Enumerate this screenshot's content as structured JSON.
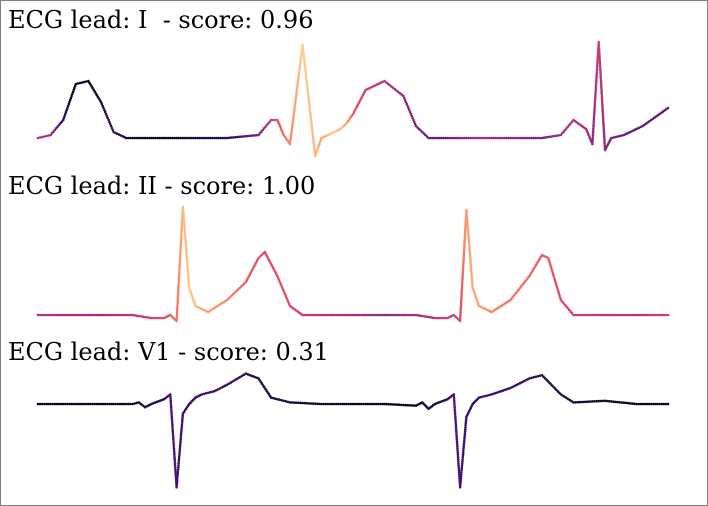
{
  "colors": {
    "colormap": [
      "#000004",
      "#1c1044",
      "#4f127b",
      "#812581",
      "#b5367a",
      "#e55064",
      "#fb8761",
      "#fec287",
      "#fcfdbf"
    ],
    "frame": "#808080",
    "background": "#ffffff"
  },
  "chart_data": [
    {
      "type": "scatter",
      "title": "ECG lead: I  - score: 0.96",
      "xlabel": "",
      "ylabel": "",
      "axes_visible": false,
      "grid": false,
      "legend": "none",
      "color_encoding": "magma colormap by attribution value (0-1)",
      "x": [
        0,
        0.02,
        0.04,
        0.06,
        0.08,
        0.1,
        0.12,
        0.14,
        0.16,
        0.2,
        0.25,
        0.3,
        0.35,
        0.37,
        0.38,
        0.39,
        0.4,
        0.42,
        0.44,
        0.45,
        0.46,
        0.47,
        0.48,
        0.49,
        0.5,
        0.52,
        0.55,
        0.58,
        0.6,
        0.62,
        0.64,
        0.66,
        0.68,
        0.7,
        0.75,
        0.8,
        0.83,
        0.85,
        0.87,
        0.88,
        0.89,
        0.9,
        0.91,
        0.93,
        0.96,
        1.0
      ],
      "y": [
        0,
        0.05,
        0.3,
        0.9,
        0.95,
        0.6,
        0.1,
        0.0,
        0.0,
        0.0,
        0.0,
        0.0,
        0.05,
        0.3,
        0.3,
        0.05,
        -0.1,
        1.55,
        -0.3,
        0.0,
        0.05,
        0.1,
        0.15,
        0.25,
        0.4,
        0.8,
        0.95,
        0.7,
        0.2,
        0.0,
        0.0,
        0.0,
        0.0,
        0.0,
        0.0,
        0.0,
        0.05,
        0.3,
        0.15,
        -0.1,
        1.6,
        -0.2,
        0.0,
        0.05,
        0.2,
        0.5
      ],
      "attribution": [
        0.5,
        0.45,
        0.15,
        0.05,
        0.05,
        0.1,
        0.2,
        0.1,
        0.05,
        0.05,
        0.1,
        0.15,
        0.35,
        0.55,
        0.6,
        0.7,
        0.75,
        0.9,
        0.85,
        0.8,
        0.85,
        0.9,
        0.85,
        0.8,
        0.65,
        0.55,
        0.5,
        0.4,
        0.35,
        0.3,
        0.3,
        0.35,
        0.4,
        0.45,
        0.4,
        0.35,
        0.45,
        0.5,
        0.45,
        0.4,
        0.55,
        0.4,
        0.35,
        0.3,
        0.3,
        0.3
      ]
    },
    {
      "type": "scatter",
      "title": "ECG lead: II - score: 1.00",
      "xlabel": "",
      "ylabel": "",
      "axes_visible": false,
      "grid": false,
      "legend": "none",
      "color_encoding": "magma colormap by attribution value (0-1)",
      "x": [
        0,
        0.05,
        0.1,
        0.15,
        0.18,
        0.2,
        0.21,
        0.22,
        0.23,
        0.24,
        0.25,
        0.27,
        0.3,
        0.33,
        0.35,
        0.36,
        0.38,
        0.4,
        0.42,
        0.45,
        0.5,
        0.55,
        0.6,
        0.63,
        0.65,
        0.66,
        0.67,
        0.68,
        0.69,
        0.7,
        0.72,
        0.75,
        0.78,
        0.8,
        0.81,
        0.83,
        0.85,
        0.9,
        0.95,
        1.0
      ],
      "y": [
        0.05,
        0.05,
        0.05,
        0.05,
        0.0,
        0.0,
        0.05,
        -0.05,
        1.85,
        0.5,
        0.2,
        0.1,
        0.3,
        0.6,
        1.0,
        1.1,
        0.7,
        0.2,
        0.05,
        0.05,
        0.05,
        0.05,
        0.05,
        0.0,
        0.0,
        0.05,
        -0.05,
        1.8,
        0.5,
        0.2,
        0.1,
        0.3,
        0.7,
        1.05,
        1.0,
        0.3,
        0.05,
        0.05,
        0.05,
        0.05
      ],
      "attribution": [
        0.5,
        0.45,
        0.45,
        0.5,
        0.55,
        0.6,
        0.65,
        0.7,
        0.85,
        0.88,
        0.85,
        0.8,
        0.75,
        0.65,
        0.62,
        0.6,
        0.62,
        0.6,
        0.55,
        0.5,
        0.45,
        0.4,
        0.45,
        0.5,
        0.55,
        0.55,
        0.6,
        0.8,
        0.82,
        0.8,
        0.75,
        0.7,
        0.68,
        0.65,
        0.65,
        0.6,
        0.55,
        0.5,
        0.5,
        0.55
      ]
    },
    {
      "type": "scatter",
      "title": "ECG lead: V1 - score: 0.31",
      "xlabel": "",
      "ylabel": "",
      "axes_visible": false,
      "grid": false,
      "legend": "none",
      "color_encoding": "magma colormap by attribution value (0-1)",
      "x": [
        0,
        0.05,
        0.1,
        0.15,
        0.16,
        0.17,
        0.18,
        0.2,
        0.21,
        0.22,
        0.23,
        0.24,
        0.25,
        0.26,
        0.28,
        0.3,
        0.33,
        0.35,
        0.37,
        0.4,
        0.45,
        0.5,
        0.55,
        0.6,
        0.61,
        0.62,
        0.63,
        0.65,
        0.66,
        0.67,
        0.68,
        0.69,
        0.7,
        0.72,
        0.75,
        0.78,
        0.8,
        0.83,
        0.85,
        0.9,
        0.95,
        1.0
      ],
      "y": [
        0.0,
        0.0,
        0.0,
        0.0,
        0.05,
        -0.1,
        0.0,
        0.15,
        0.3,
        -2.6,
        -0.3,
        0.0,
        0.2,
        0.3,
        0.4,
        0.6,
        0.95,
        0.8,
        0.2,
        0.05,
        0.0,
        0.0,
        0.0,
        -0.05,
        0.05,
        -0.15,
        0.0,
        0.15,
        0.3,
        -2.6,
        -0.4,
        0.0,
        0.2,
        0.3,
        0.5,
        0.8,
        0.9,
        0.3,
        0.05,
        0.1,
        0.0,
        0.0
      ],
      "attribution": [
        0.05,
        0.05,
        0.05,
        0.05,
        0.1,
        0.15,
        0.12,
        0.15,
        0.25,
        0.22,
        0.2,
        0.18,
        0.2,
        0.22,
        0.2,
        0.2,
        0.15,
        0.15,
        0.12,
        0.1,
        0.08,
        0.05,
        0.05,
        0.05,
        0.1,
        0.12,
        0.1,
        0.15,
        0.25,
        0.22,
        0.2,
        0.18,
        0.2,
        0.2,
        0.2,
        0.18,
        0.15,
        0.12,
        0.1,
        0.08,
        0.05,
        0.05
      ]
    }
  ]
}
